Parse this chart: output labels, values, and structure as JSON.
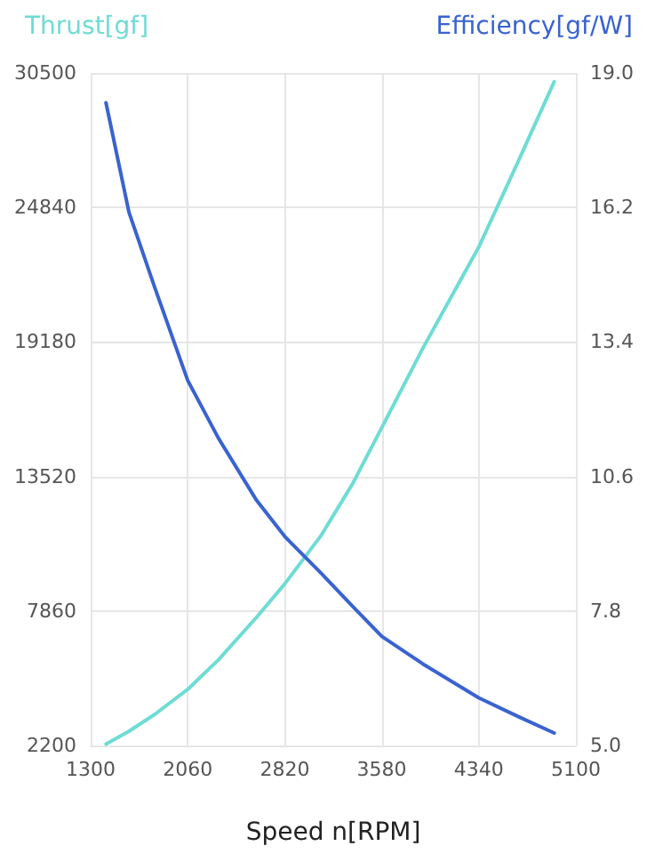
{
  "chart_data": {
    "type": "line",
    "xlabel": "Speed n[RPM]",
    "ylabel": "Thrust[gf]",
    "y2label": "Efficiency[gf/W]",
    "x": [
      1420,
      1600,
      1800,
      2060,
      2300,
      2600,
      2820,
      3100,
      3350,
      3580,
      3900,
      4340,
      4650,
      4930
    ],
    "series": [
      {
        "color": "#6edcd4",
        "values": [
          2260,
          2800,
          3500,
          4560,
          5800,
          7600,
          9000,
          11000,
          13200,
          15580,
          18900,
          23180,
          26800,
          30130
        ]
      },
      {
        "color": "#3a63d0",
        "axis": "y2",
        "values": [
          18.38,
          16.1,
          14.55,
          12.6,
          11.4,
          10.1,
          9.35,
          8.6,
          7.9,
          7.27,
          6.7,
          5.99,
          5.6,
          5.26
        ]
      }
    ],
    "xlim": [
      1300,
      5100
    ],
    "xticks": [
      1300,
      2060,
      2820,
      3580,
      4340,
      5100
    ],
    "ylim": [
      2200,
      30500
    ],
    "yticks": [
      2200,
      7860,
      13520,
      19180,
      24840,
      30500
    ],
    "y2lim": [
      5.0,
      19.0
    ],
    "y2ticks": [
      {
        "value": 5,
        "label": "5.0"
      },
      {
        "value": 7.8,
        "label": "7.8"
      },
      {
        "value": 10.6,
        "label": "10.6"
      },
      {
        "value": 13.4,
        "label": "13.4"
      },
      {
        "value": 16.2,
        "label": "16.2"
      },
      {
        "value": 19,
        "label": "19.0"
      }
    ],
    "grid": true,
    "marker": "none",
    "line_style": "solid"
  }
}
